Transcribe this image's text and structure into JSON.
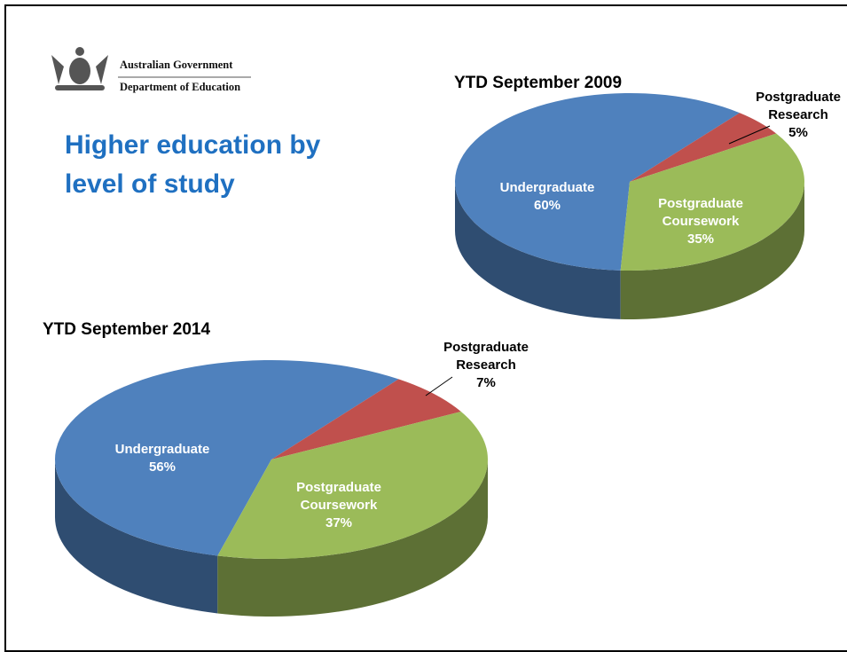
{
  "header": {
    "org": "Australian Government",
    "dept": "Department of Education"
  },
  "title": "Higher education by level of study",
  "chart_data": [
    {
      "type": "pie",
      "title": "YTD September 2009",
      "categories": [
        "Undergraduate",
        "Postgraduate Research",
        "Postgraduate Coursework"
      ],
      "values": [
        60,
        5,
        35
      ],
      "value_labels": [
        "60%",
        "5%",
        "35%"
      ],
      "colors": [
        "#4f81bd",
        "#c0504d",
        "#9bbb59"
      ]
    },
    {
      "type": "pie",
      "title": "YTD September 2014",
      "categories": [
        "Undergraduate",
        "Postgraduate Research",
        "Postgraduate Coursework"
      ],
      "values": [
        56,
        7,
        37
      ],
      "value_labels": [
        "56%",
        "7%",
        "37%"
      ],
      "colors": [
        "#4f81bd",
        "#c0504d",
        "#9bbb59"
      ]
    }
  ]
}
